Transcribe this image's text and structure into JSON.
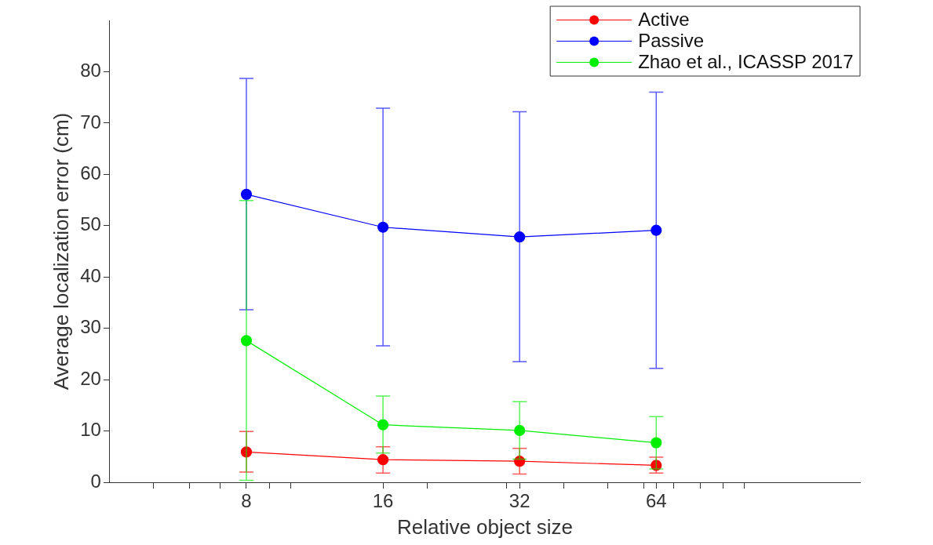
{
  "chart_data": {
    "type": "line",
    "xlabel": "Relative object size",
    "ylabel": "Average localization error (cm)",
    "x": [
      8,
      16,
      32,
      64
    ],
    "log": "x",
    "xlim": [
      4,
      180
    ],
    "xticks": [
      {
        "value": 5,
        "label": null
      },
      {
        "value": 6,
        "label": null
      },
      {
        "value": 7,
        "label": null
      },
      8,
      {
        "value": 9,
        "label": null
      },
      {
        "value": 10,
        "label": null
      },
      16,
      {
        "value": 20,
        "label": null
      },
      {
        "value": 30,
        "label": null
      },
      32,
      {
        "value": 40,
        "label": null
      },
      {
        "value": 50,
        "label": null
      },
      {
        "value": 60,
        "label": null
      },
      64,
      {
        "value": 70,
        "label": null
      },
      {
        "value": 80,
        "label": null
      },
      {
        "value": 90,
        "label": null
      },
      {
        "value": 100,
        "label": null
      }
    ],
    "ylim": [
      0,
      90
    ],
    "yticks": [
      0,
      10,
      20,
      30,
      40,
      50,
      60,
      70,
      80
    ],
    "marker": "circle",
    "grid": false,
    "legend": "top right",
    "series": [
      {
        "name": "Active",
        "color": "#ff0000",
        "values": [
          5.9,
          4.4,
          4.1,
          3.3
        ],
        "errors": [
          [
            2.0,
            9.9
          ],
          [
            1.8,
            6.9
          ],
          [
            1.6,
            6.6
          ],
          [
            1.8,
            4.9
          ]
        ]
      },
      {
        "name": "Passive",
        "color": "#0000ff",
        "values": [
          56.1,
          49.7,
          47.8,
          49.1
        ],
        "errors": [
          [
            33.6,
            78.7
          ],
          [
            26.6,
            72.9
          ],
          [
            23.5,
            72.2
          ],
          [
            22.2,
            76.0
          ]
        ]
      },
      {
        "name": "Zhao et al., ICASSP 2017",
        "color": "#00ee00",
        "values": [
          27.6,
          11.2,
          10.1,
          7.7
        ],
        "errors": [
          [
            0.4,
            54.9
          ],
          [
            5.7,
            16.8
          ],
          [
            4.5,
            15.7
          ],
          [
            2.6,
            12.8
          ]
        ]
      }
    ]
  }
}
